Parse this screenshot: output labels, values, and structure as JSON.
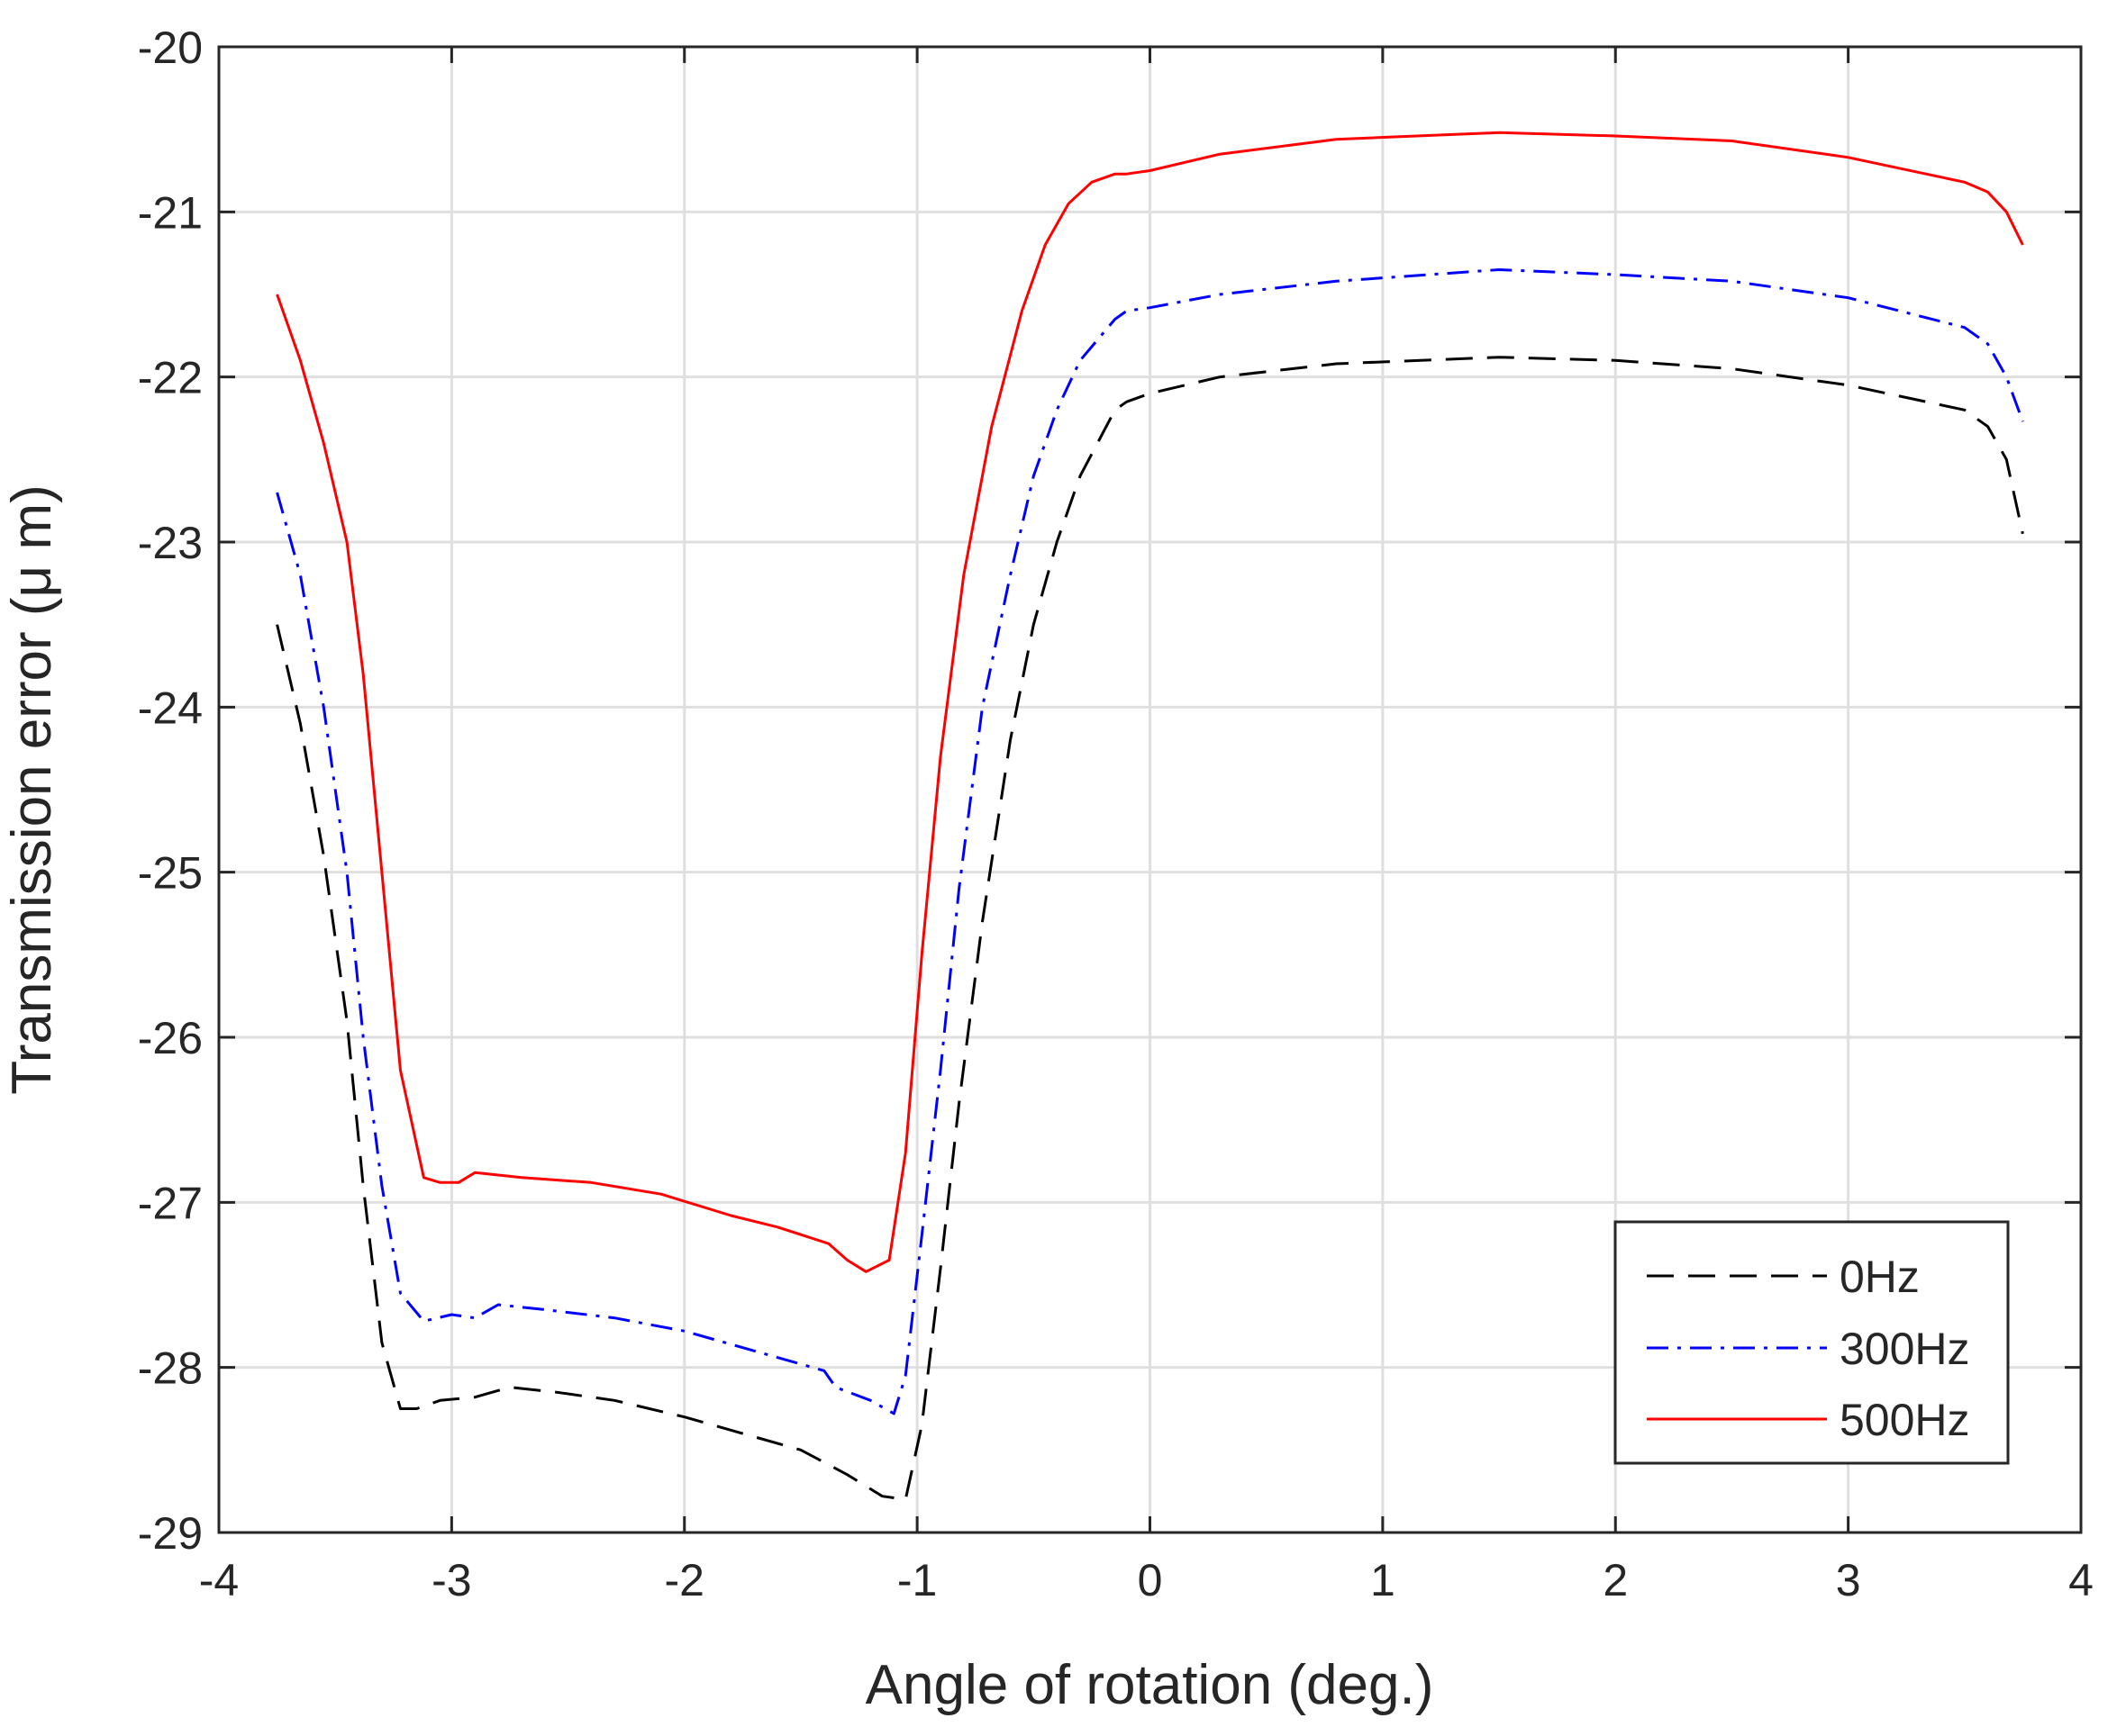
{
  "chart_data": {
    "type": "line",
    "title": "",
    "xlabel": "Angle of rotation (deg.)",
    "ylabel": "Transmission error (μ m)",
    "xlim": [
      -4,
      4
    ],
    "ylim": [
      -29,
      -20
    ],
    "xticks": [
      -4,
      -3,
      -2,
      -1,
      0,
      1,
      2,
      3,
      4
    ],
    "yticks": [
      -29,
      -28,
      -27,
      -26,
      -25,
      -24,
      -23,
      -22,
      -21,
      -20
    ],
    "grid": true,
    "legend": "bottom-right",
    "series": [
      {
        "name": "0Hz",
        "color": "#000000",
        "style": "dashed",
        "x": [
          -3.75,
          -3.65,
          -3.55,
          -3.45,
          -3.38,
          -3.3,
          -3.22,
          -3.15,
          -3.05,
          -2.9,
          -2.75,
          -2.55,
          -2.3,
          -2.0,
          -1.7,
          -1.5,
          -1.3,
          -1.15,
          -1.05,
          -0.98,
          -0.9,
          -0.82,
          -0.72,
          -0.6,
          -0.5,
          -0.4,
          -0.3,
          -0.15,
          -0.1,
          0.0,
          0.3,
          0.8,
          1.5,
          2.0,
          2.5,
          3.0,
          3.5,
          3.6,
          3.68,
          3.75
        ],
        "y": [
          -23.5,
          -24.1,
          -24.9,
          -25.9,
          -26.9,
          -27.85,
          -28.25,
          -28.25,
          -28.2,
          -28.18,
          -28.12,
          -28.15,
          -28.2,
          -28.3,
          -28.42,
          -28.5,
          -28.65,
          -28.78,
          -28.8,
          -28.35,
          -27.4,
          -26.4,
          -25.3,
          -24.2,
          -23.5,
          -23.0,
          -22.6,
          -22.2,
          -22.15,
          -22.1,
          -22.0,
          -21.92,
          -21.88,
          -21.9,
          -21.95,
          -22.05,
          -22.2,
          -22.3,
          -22.5,
          -22.95
        ]
      },
      {
        "name": "300Hz",
        "color": "#0000ff",
        "style": "dash-dot",
        "x": [
          -3.75,
          -3.65,
          -3.55,
          -3.45,
          -3.38,
          -3.3,
          -3.22,
          -3.12,
          -3.0,
          -2.9,
          -2.8,
          -2.6,
          -2.3,
          -2.0,
          -1.7,
          -1.4,
          -1.35,
          -1.2,
          -1.1,
          -1.05,
          -0.98,
          -0.9,
          -0.82,
          -0.72,
          -0.6,
          -0.5,
          -0.4,
          -0.3,
          -0.15,
          -0.1,
          0.0,
          0.3,
          0.8,
          1.5,
          2.0,
          2.5,
          3.0,
          3.5,
          3.6,
          3.68,
          3.75
        ],
        "y": [
          -22.7,
          -23.2,
          -24.0,
          -25.0,
          -26.0,
          -26.9,
          -27.55,
          -27.72,
          -27.68,
          -27.7,
          -27.62,
          -27.65,
          -27.7,
          -27.78,
          -27.9,
          -28.02,
          -28.12,
          -28.2,
          -28.28,
          -28.05,
          -27.2,
          -26.2,
          -25.1,
          -24.0,
          -23.2,
          -22.6,
          -22.2,
          -21.9,
          -21.65,
          -21.6,
          -21.58,
          -21.5,
          -21.42,
          -21.35,
          -21.38,
          -21.42,
          -21.52,
          -21.7,
          -21.8,
          -22.0,
          -22.27
        ]
      },
      {
        "name": "500Hz",
        "color": "#ff0000",
        "style": "solid",
        "x": [
          -3.75,
          -3.65,
          -3.55,
          -3.45,
          -3.38,
          -3.3,
          -3.22,
          -3.12,
          -3.05,
          -2.97,
          -2.9,
          -2.7,
          -2.4,
          -2.1,
          -1.8,
          -1.6,
          -1.38,
          -1.3,
          -1.22,
          -1.12,
          -1.05,
          -0.98,
          -0.9,
          -0.8,
          -0.68,
          -0.55,
          -0.45,
          -0.35,
          -0.25,
          -0.15,
          -0.1,
          0.0,
          0.3,
          0.8,
          1.5,
          2.0,
          2.5,
          3.0,
          3.5,
          3.6,
          3.68,
          3.75
        ],
        "y": [
          -21.5,
          -21.9,
          -22.4,
          -23.0,
          -23.8,
          -25.0,
          -26.2,
          -26.85,
          -26.88,
          -26.88,
          -26.82,
          -26.85,
          -26.88,
          -26.95,
          -27.08,
          -27.15,
          -27.25,
          -27.35,
          -27.42,
          -27.35,
          -26.7,
          -25.5,
          -24.3,
          -23.2,
          -22.3,
          -21.6,
          -21.2,
          -20.95,
          -20.82,
          -20.77,
          -20.77,
          -20.75,
          -20.65,
          -20.56,
          -20.52,
          -20.54,
          -20.57,
          -20.67,
          -20.82,
          -20.88,
          -21.0,
          -21.2
        ]
      }
    ]
  }
}
